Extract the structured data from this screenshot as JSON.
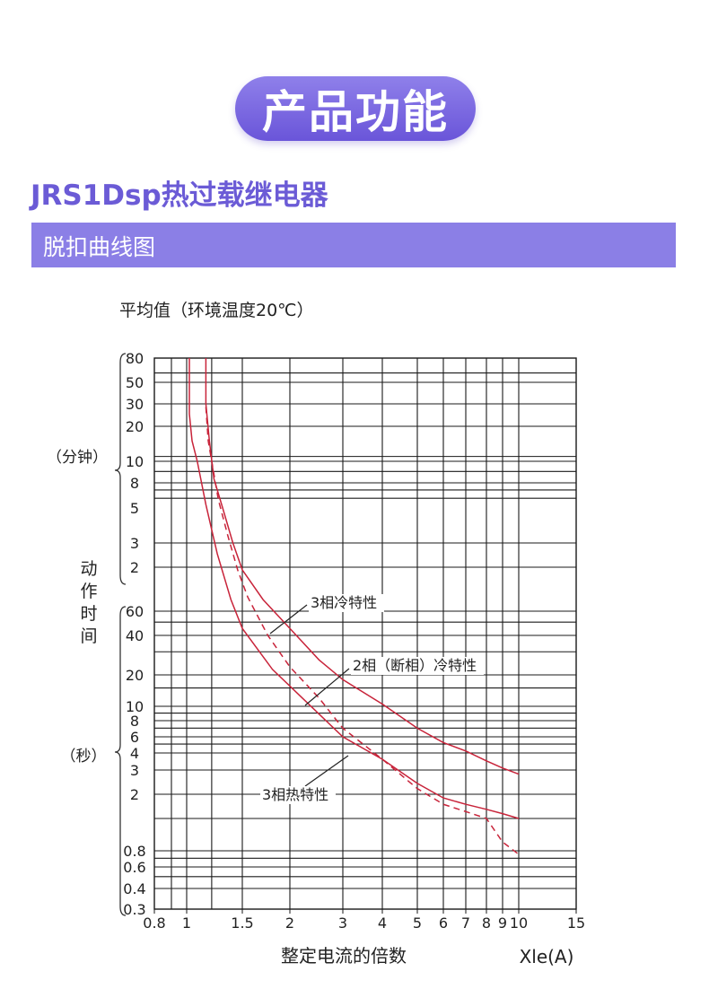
{
  "header": {
    "badge_label": "产品功能",
    "product_title": "JRS1Dsp热过载继电器",
    "section_label": "脱扣曲线图"
  },
  "colors": {
    "accent": "#7b6be0",
    "curve": "#c8243a",
    "grid": "#1a1a1a"
  },
  "chart_data": {
    "type": "line",
    "title": "平均值（环境温度20℃）",
    "xlabel": "整定电流的倍数",
    "x_unit": "Xle(A)",
    "ylabel": "动作时间",
    "x_scale": "log",
    "y_scale": "log",
    "xlim": [
      0.8,
      15
    ],
    "ylim_seconds": [
      0.3,
      4800
    ],
    "x_ticks": [
      "0.8",
      "1",
      "1.5",
      "2",
      "3",
      "4",
      "5",
      "6",
      "7",
      "8",
      "9",
      "10",
      "15"
    ],
    "y_ticks_minutes": [
      "80",
      "50",
      "30",
      "20",
      "10",
      "8",
      "5",
      "3",
      "2"
    ],
    "y_ticks_seconds": [
      "60",
      "40",
      "20",
      "10",
      "8",
      "6",
      "4",
      "3",
      "2",
      "0.8",
      "0.6",
      "0.4",
      "0.3"
    ],
    "unit_minutes": "（分钟）",
    "unit_seconds": "（秒）",
    "grid": true,
    "series": [
      {
        "name": "3相冷特性",
        "style": "solid",
        "points": [
          [
            1.15,
            4800
          ],
          [
            1.15,
            1800
          ],
          [
            1.18,
            900
          ],
          [
            1.22,
            500
          ],
          [
            1.3,
            300
          ],
          [
            1.4,
            180
          ],
          [
            1.5,
            115
          ],
          [
            1.7,
            72
          ],
          [
            2,
            45
          ],
          [
            2.5,
            26
          ],
          [
            3,
            18
          ],
          [
            4,
            10.5
          ],
          [
            5,
            7
          ],
          [
            6,
            5.2
          ],
          [
            7,
            4.2
          ],
          [
            8,
            3.5
          ],
          [
            9,
            3.1
          ],
          [
            10,
            2.8
          ]
        ]
      },
      {
        "name": "2相（断相）冷特性",
        "style": "solid",
        "points": [
          [
            1.02,
            4800
          ],
          [
            1.02,
            1500
          ],
          [
            1.04,
            900
          ],
          [
            1.08,
            600
          ],
          [
            1.15,
            320
          ],
          [
            1.25,
            150
          ],
          [
            1.38,
            72
          ],
          [
            1.5,
            45
          ],
          [
            1.8,
            22
          ],
          [
            2.2,
            12
          ],
          [
            3,
            6
          ],
          [
            4,
            3.6
          ],
          [
            5,
            2.4
          ],
          [
            6,
            1.8
          ],
          [
            7,
            1.5
          ],
          [
            8,
            1.3
          ],
          [
            9,
            1.15
          ],
          [
            10,
            1.0
          ]
        ]
      },
      {
        "name": "3相热特性",
        "style": "dashed",
        "points": [
          [
            1.15,
            1700
          ],
          [
            1.17,
            900
          ],
          [
            1.2,
            600
          ],
          [
            1.26,
            350
          ],
          [
            1.35,
            200
          ],
          [
            1.45,
            115
          ],
          [
            1.55,
            75
          ],
          [
            1.75,
            40
          ],
          [
            2,
            23
          ],
          [
            2.5,
            12
          ],
          [
            3,
            7
          ],
          [
            4,
            3.6
          ],
          [
            5,
            2.2
          ],
          [
            6,
            1.5
          ],
          [
            7,
            1.22
          ],
          [
            8,
            1.0
          ],
          [
            9,
            0.85
          ],
          [
            10,
            0.75
          ]
        ]
      }
    ],
    "annotations": [
      {
        "text": "3相冷特性",
        "series": "3相冷特性"
      },
      {
        "text": "2相（断相）冷特性",
        "series": "2相（断相）冷特性"
      },
      {
        "text": "3相热特性",
        "series": "3相热特性"
      }
    ]
  }
}
